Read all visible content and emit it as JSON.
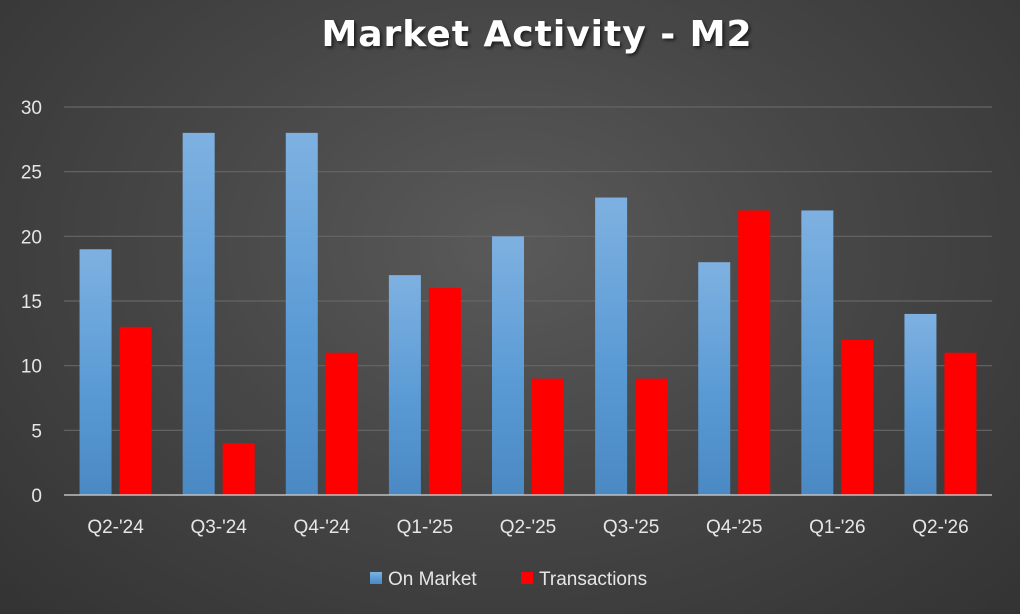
{
  "chart_data": {
    "type": "bar",
    "title": "Market Activity - M2",
    "xlabel": "",
    "ylabel": "",
    "categories": [
      "Q2-'24",
      "Q3-'24",
      "Q4-'24",
      "Q1-'25",
      "Q2-'25",
      "Q3-'25",
      "Q4-'25",
      "Q1-'26",
      "Q2-'26"
    ],
    "series": [
      {
        "name": "On Market",
        "values": [
          19,
          28,
          28,
          17,
          20,
          23,
          18,
          22,
          14
        ],
        "color": "#5b9bd5"
      },
      {
        "name": "Transactions",
        "values": [
          13,
          4,
          11,
          16,
          9,
          9,
          22,
          12,
          11
        ],
        "color": "#ff0000"
      }
    ],
    "ylim": [
      0,
      30
    ],
    "yticks": [
      0,
      5,
      10,
      15,
      20,
      25,
      30
    ],
    "grid": true,
    "legend_position": "bottom"
  },
  "colors": {
    "background": "#474747",
    "gridline": "#666666",
    "axis": "#bfbfbf",
    "text": "#e6e6e6"
  }
}
